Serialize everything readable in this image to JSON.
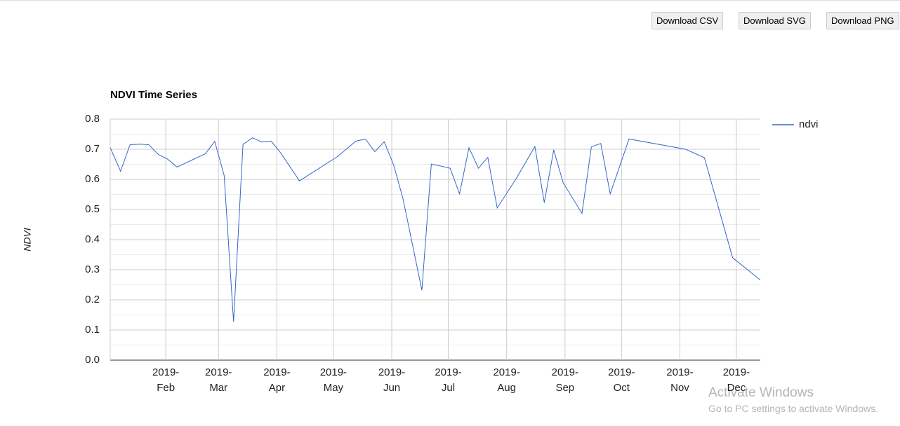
{
  "buttons": [
    "Download CSV",
    "Download SVG",
    "Download PNG"
  ],
  "chart_data": {
    "type": "line",
    "title": "NDVI Time Series",
    "y_label": "NDVI",
    "x": [
      2.5,
      8,
      13,
      18,
      23,
      28,
      33,
      38,
      53,
      58,
      63,
      68,
      73,
      78,
      83,
      88,
      93,
      103,
      123,
      133,
      138,
      143,
      148,
      153,
      158,
      168,
      173,
      183,
      188,
      193,
      198,
      203,
      208,
      218,
      228,
      233,
      238,
      243,
      253,
      258,
      263,
      268,
      278,
      308,
      318,
      333,
      347.7
    ],
    "series": [
      {
        "name": "ndvi",
        "color": "#3366cc",
        "values": [
          0.705,
          0.627,
          0.715,
          0.717,
          0.715,
          0.683,
          0.667,
          0.641,
          0.685,
          0.726,
          0.613,
          0.127,
          0.716,
          0.738,
          0.724,
          0.727,
          0.688,
          0.595,
          0.675,
          0.727,
          0.734,
          0.692,
          0.725,
          0.648,
          0.535,
          0.232,
          0.651,
          0.637,
          0.552,
          0.705,
          0.637,
          0.673,
          0.505,
          0.602,
          0.709,
          0.523,
          0.698,
          0.589,
          0.487,
          0.708,
          0.719,
          0.552,
          0.734,
          0.7,
          0.672,
          0.34,
          0.266
        ]
      }
    ],
    "xlim": [
      2.5,
      347.7
    ],
    "xticks": [
      {
        "value": 32,
        "label": "2019-Feb"
      },
      {
        "value": 60,
        "label": "2019-Mar"
      },
      {
        "value": 91,
        "label": "2019-Apr"
      },
      {
        "value": 121,
        "label": "2019-May"
      },
      {
        "value": 152,
        "label": "2019-Jun"
      },
      {
        "value": 182,
        "label": "2019-Jul"
      },
      {
        "value": 213,
        "label": "2019-Aug"
      },
      {
        "value": 244,
        "label": "2019-Sep"
      },
      {
        "value": 274,
        "label": "2019-Oct"
      },
      {
        "value": 305,
        "label": "2019-Nov"
      },
      {
        "value": 335,
        "label": "2019-Dec"
      }
    ],
    "ylim": [
      0,
      0.8
    ],
    "yticks": [
      {
        "value": 0,
        "label": "0.0"
      },
      0.1,
      0.2,
      0.3,
      0.4,
      0.5,
      0.6,
      0.7,
      0.8
    ],
    "grid": true,
    "minor_grid": true,
    "legend": "right"
  },
  "watermark": {
    "title": "Activate Windows",
    "subtitle": "Go to PC settings to activate Windows."
  }
}
